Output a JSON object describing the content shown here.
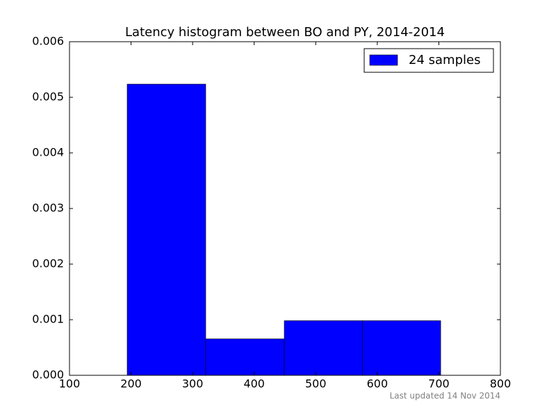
{
  "chart_data": {
    "type": "histogram",
    "title": "Latency histogram between BO and PY, 2014-2014",
    "bins": [
      193.7,
      321.3,
      448.9,
      576.1,
      703.0
    ],
    "series": [
      {
        "name": "24 samples",
        "color": "#0000ff",
        "values": [
          0.005237,
          0.000655,
          0.000982,
          0.000982
        ]
      }
    ],
    "xlim": [
      100,
      800
    ],
    "xticks": [
      100,
      200,
      300,
      400,
      500,
      600,
      700,
      800
    ],
    "ylim": [
      0,
      0.006
    ],
    "yticks": [
      {
        "value": 0,
        "label": "0.000"
      },
      {
        "value": 0.001,
        "label": "0.001"
      },
      {
        "value": 0.002,
        "label": "0.002"
      },
      {
        "value": 0.003,
        "label": "0.003"
      },
      {
        "value": 0.004,
        "label": "0.004"
      },
      {
        "value": 0.005,
        "label": "0.005"
      },
      {
        "value": 0.006,
        "label": "0.006"
      }
    ],
    "legend": "upper right",
    "annotation": "Last updated 14 Nov 2014"
  }
}
